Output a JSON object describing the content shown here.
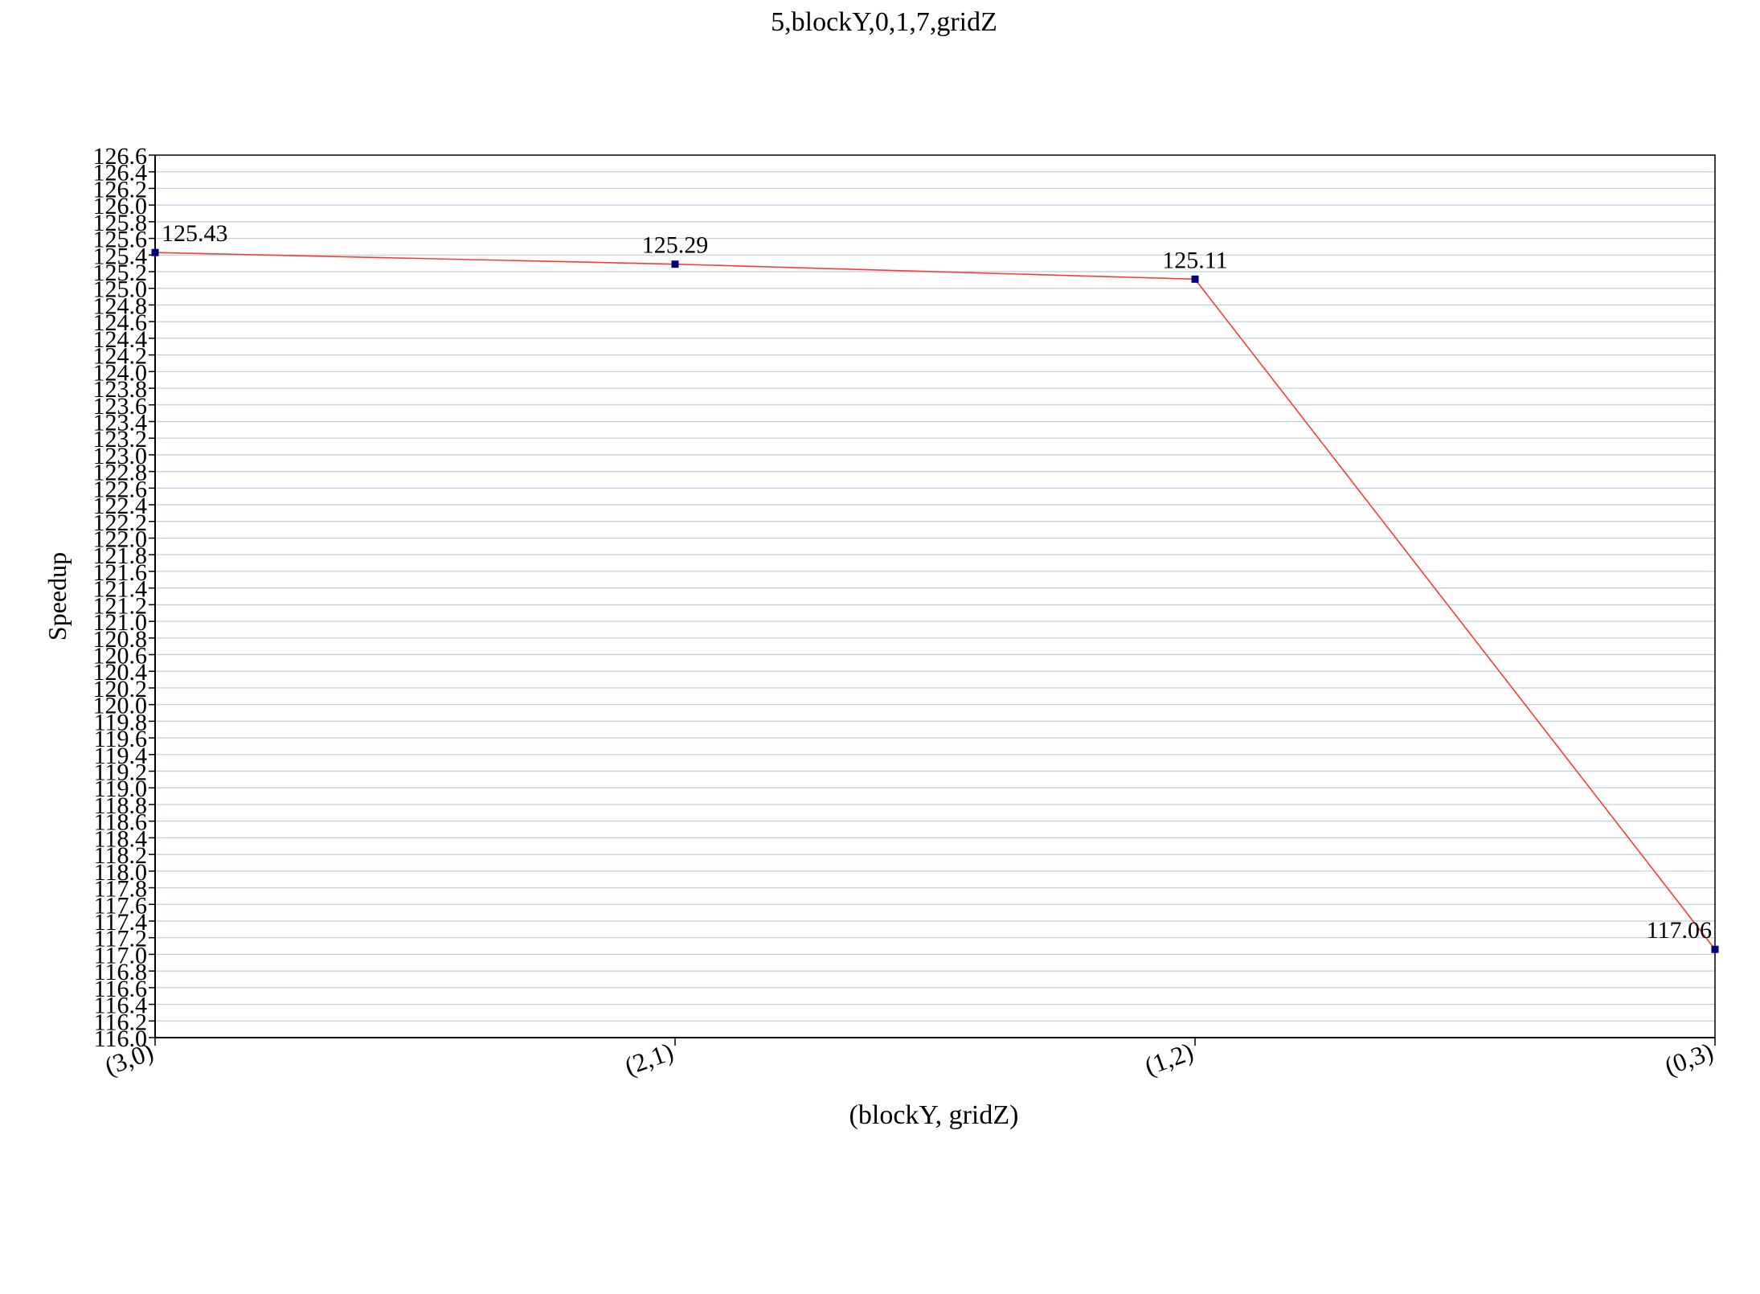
{
  "chart_data": {
    "type": "line",
    "title": "5,blockY,0,1,7,gridZ",
    "xlabel": "(blockY, gridZ)",
    "ylabel": "Speedup",
    "categories": [
      "(3,0)",
      "(2,1)",
      "(1,2)",
      "(0,3)"
    ],
    "series": [
      {
        "values": [
          125.43,
          125.29,
          125.11,
          117.06
        ],
        "data_labels": [
          "125.43",
          "125.29",
          "125.11",
          "117.06"
        ],
        "line_color": "#ff3b30",
        "marker_color": "#00007f"
      }
    ],
    "ylim": [
      116.0,
      126.6
    ],
    "ytick_step": 0.2,
    "grid": true,
    "grid_color": "#b8cfe6",
    "legend": "none"
  }
}
